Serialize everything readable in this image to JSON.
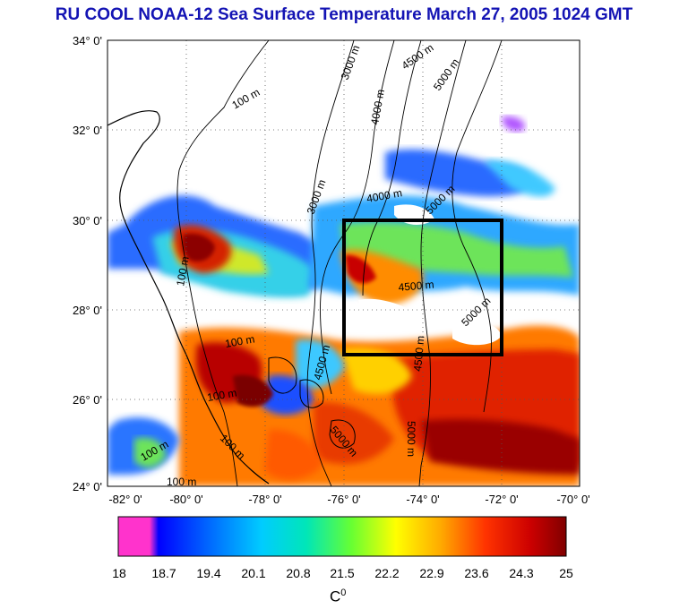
{
  "title": "RU COOL  NOAA-12 Sea Surface Temperature March 27, 2005 1024 GMT",
  "map": {
    "lat_labels": [
      "34° 0'",
      "32° 0'",
      "30° 0'",
      "28° 0'",
      "26° 0'",
      "24° 0'"
    ],
    "lon_labels": [
      "-82° 0'",
      "-80° 0'",
      "-78° 0'",
      "-76° 0'",
      "-74° 0'",
      "-72° 0'",
      "-70° 0'"
    ],
    "lat_range": [
      24,
      34
    ],
    "lon_range": [
      -82,
      -70
    ],
    "grid": "dotted",
    "study_box": {
      "lon": [
        -76,
        -72
      ],
      "lat": [
        27,
        30
      ]
    },
    "contour_labels": [
      "100 m",
      "3000 m",
      "4500 m",
      "5000 m",
      "4000 m",
      "3000 m",
      "4000 m",
      "5000 m",
      "4500 m",
      "5000 m",
      "100 m",
      "4500 m",
      "5000 m",
      "4500 m",
      "5000 m",
      "100 m",
      "100 m",
      "100 m",
      "100 m",
      "100 m"
    ]
  },
  "colorbar": {
    "ticks": [
      "18",
      "18.7",
      "19.4",
      "20.1",
      "20.8",
      "21.5",
      "22.2",
      "22.9",
      "23.6",
      "24.3",
      "25"
    ],
    "unit_base": "C",
    "unit_sup": "0",
    "colors": [
      "#ff33cc",
      "#0000ff",
      "#0099ff",
      "#00e6e6",
      "#33ff66",
      "#ccff33",
      "#ffff00",
      "#ffaa00",
      "#ff3300",
      "#cc0000",
      "#800000"
    ]
  }
}
